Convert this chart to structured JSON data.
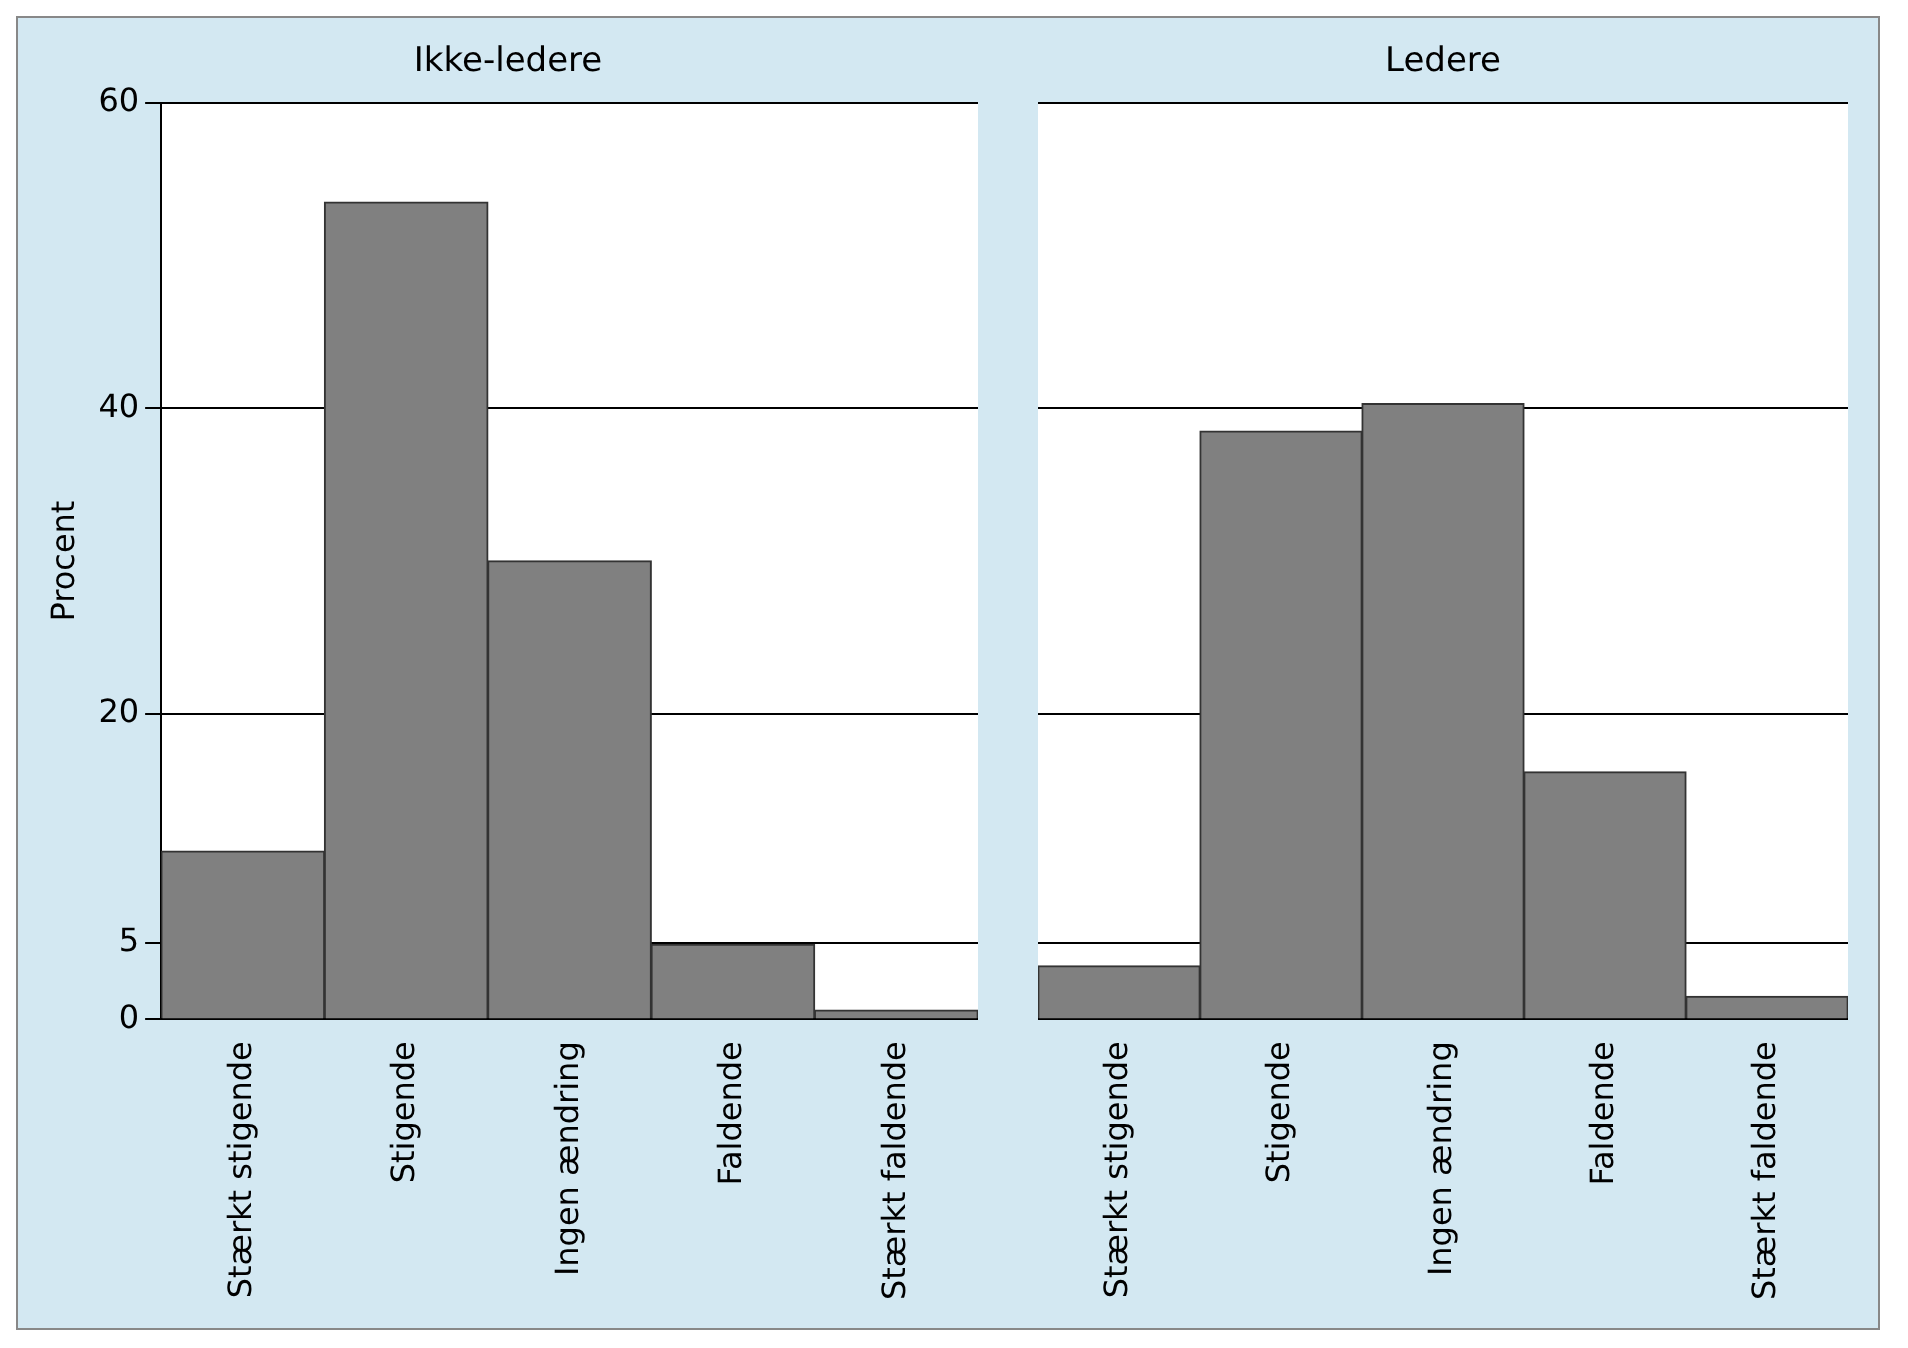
{
  "chart_data": [
    {
      "type": "bar",
      "title": "Ikke-ledere",
      "ylabel": "Procent",
      "categories": [
        "Stærkt stigende",
        "Stigende",
        "Ingen ændring",
        "Faldende",
        "Stærkt faldende"
      ],
      "values": [
        11.0,
        53.5,
        30.0,
        4.9,
        0.6
      ],
      "color": "#808080",
      "ylim": [
        0,
        60
      ],
      "yticks": [
        0,
        5,
        20,
        40,
        60
      ],
      "grid": "y"
    },
    {
      "type": "bar",
      "title": "Ledere",
      "categories": [
        "Stærkt stigende",
        "Stigende",
        "Ingen ændring",
        "Faldende",
        "Stærkt faldende"
      ],
      "values": [
        3.5,
        38.5,
        40.3,
        16.2,
        1.5
      ],
      "color": "#808080",
      "ylim": [
        0,
        60
      ],
      "yticks": [
        0,
        5,
        20,
        40,
        60
      ],
      "grid": "y",
      "tick_labels": "x"
    }
  ]
}
